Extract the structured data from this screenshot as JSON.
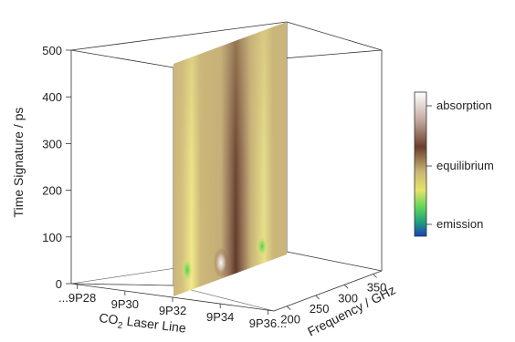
{
  "chart_data": {
    "type": "surface-3d",
    "title": "",
    "axes": {
      "y": {
        "label": "Time Signature / ps",
        "ticks": [
          "0",
          "100",
          "200",
          "300",
          "400",
          "500"
        ],
        "range": [
          0,
          500
        ]
      },
      "x": {
        "label_main": "CO",
        "label_sub": "2",
        "label_rest": " Laser Line",
        "ticks": [
          "...9P28",
          "9P30",
          "9P32",
          "9P34",
          "9P36..."
        ]
      },
      "z": {
        "label": "Frequency / GHz",
        "ticks": [
          "200",
          "250",
          "300",
          "350"
        ],
        "range": [
          200,
          350
        ]
      }
    },
    "colorbar": {
      "labels": [
        "absorption",
        "equilibrium",
        "emission"
      ],
      "stops": [
        {
          "pos": 0.0,
          "color": "#ffffff"
        },
        {
          "pos": 0.2,
          "color": "#c3a79c"
        },
        {
          "pos": 0.38,
          "color": "#6b3e2c"
        },
        {
          "pos": 0.55,
          "color": "#c8b574"
        },
        {
          "pos": 0.68,
          "color": "#e6e46a"
        },
        {
          "pos": 0.8,
          "color": "#5fd65a"
        },
        {
          "pos": 0.9,
          "color": "#1fa27a"
        },
        {
          "pos": 1.0,
          "color": "#1a3fb8"
        }
      ]
    },
    "surface": {
      "base_color": "#c9b57a",
      "features": [
        {
          "kind": "yellow-green ridge",
          "x_fraction": 0.16
        },
        {
          "kind": "brown absorption ridge",
          "x_fraction": 0.55
        },
        {
          "kind": "yellow-green ridge",
          "x_fraction": 0.8
        }
      ]
    }
  }
}
